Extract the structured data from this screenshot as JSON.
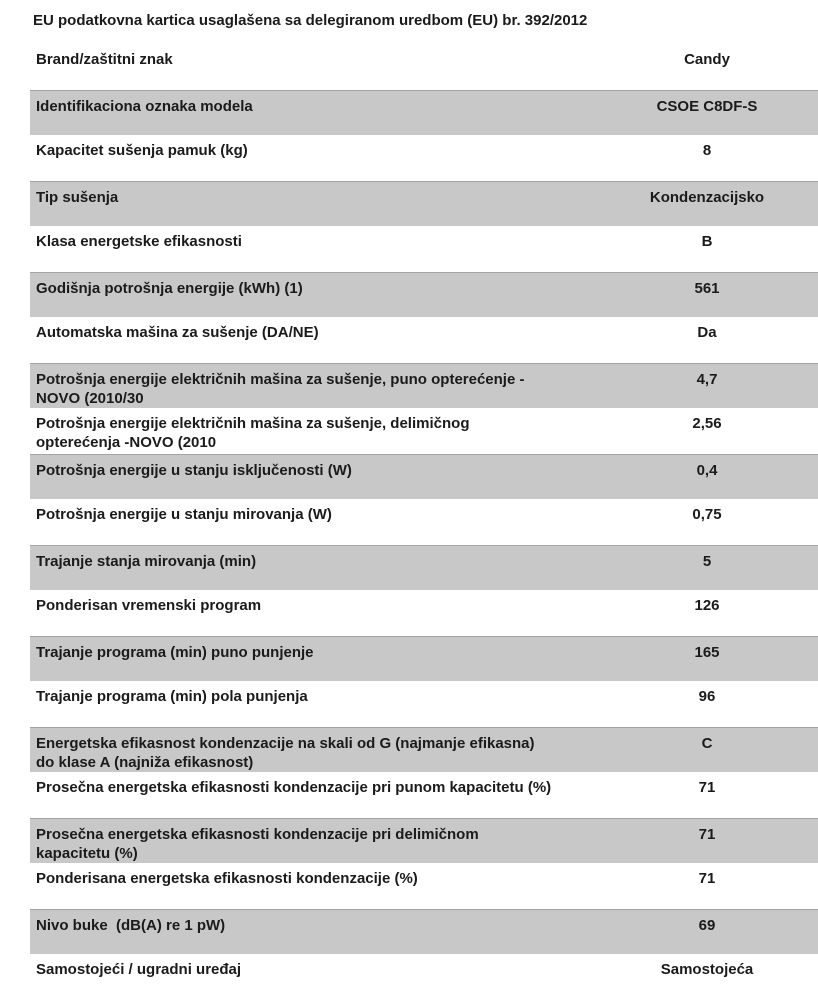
{
  "title": "EU podatkovna kartica usaglašena sa delegiranom uredbom (EU) br. 392/2012",
  "colors": {
    "shaded_row_bg": "#c8c8c8",
    "shaded_row_border": "#a3a3a3",
    "text": "#1b1b1b",
    "page_bg": "#ffffff"
  },
  "table": {
    "rows": [
      {
        "label": "Brand/zaštitni znak",
        "value": "Candy",
        "shaded": false
      },
      {
        "label": "Identifikaciona oznaka modela",
        "value": "CSOE C8DF-S",
        "shaded": true
      },
      {
        "label": "Kapacitet sušenja pamuk (kg)",
        "value": "8",
        "shaded": false
      },
      {
        "label": "Tip sušenja",
        "value": "Kondenzacijsko",
        "shaded": true
      },
      {
        "label": "Klasa energetske efikasnosti",
        "value": "B",
        "shaded": false
      },
      {
        "label": "Godišnja potrošnja energije (kWh) (1)",
        "value": "561",
        "shaded": true
      },
      {
        "label": "Automatska mašina za sušenje (DA/NE)",
        "value": "Da",
        "shaded": false
      },
      {
        "label": "Potrošnja energije električnih mašina za sušenje, puno opterećenje - NOVO (2010/30",
        "value": "4,7",
        "shaded": true
      },
      {
        "label": "Potrošnja energije električnih mašina za sušenje, delimičnog opterećenja -NOVO (2010",
        "value": "2,56",
        "shaded": false
      },
      {
        "label": "Potrošnja energije u stanju isključenosti (W)",
        "value": "0,4",
        "shaded": true
      },
      {
        "label": "Potrošnja energije u stanju mirovanja (W)",
        "value": "0,75",
        "shaded": false
      },
      {
        "label": "Trajanje stanja mirovanja (min)",
        "value": "5",
        "shaded": true
      },
      {
        "label": "Ponderisan vremenski program",
        "value": "126",
        "shaded": false
      },
      {
        "label": "Trajanje programa (min) puno punjenje",
        "value": "165",
        "shaded": true
      },
      {
        "label": "Trajanje programa (min) pola punjenja",
        "value": "96",
        "shaded": false
      },
      {
        "label": "Energetska efikasnost kondenzacije na skali od G (najmanje efikasna) do klase A (najniža efikasnost)",
        "value": "C",
        "shaded": true
      },
      {
        "label": "Prosečna energetska efikasnosti kondenzacije pri punom kapacitetu (%)",
        "value": "71",
        "shaded": false
      },
      {
        "label": "Prosečna energetska efikasnosti kondenzacije pri delimičnom kapacitetu (%)",
        "value": "71",
        "shaded": true
      },
      {
        "label": "Ponderisana energetska efikasnosti kondenzacije (%)",
        "value": "71",
        "shaded": false
      },
      {
        "label": "Nivo buke  (dB(A) re 1 pW)",
        "value": "69",
        "shaded": true
      },
      {
        "label": "Samostojeći / ugradni uređaj",
        "value": "Samostojeća",
        "shaded": false
      }
    ]
  }
}
